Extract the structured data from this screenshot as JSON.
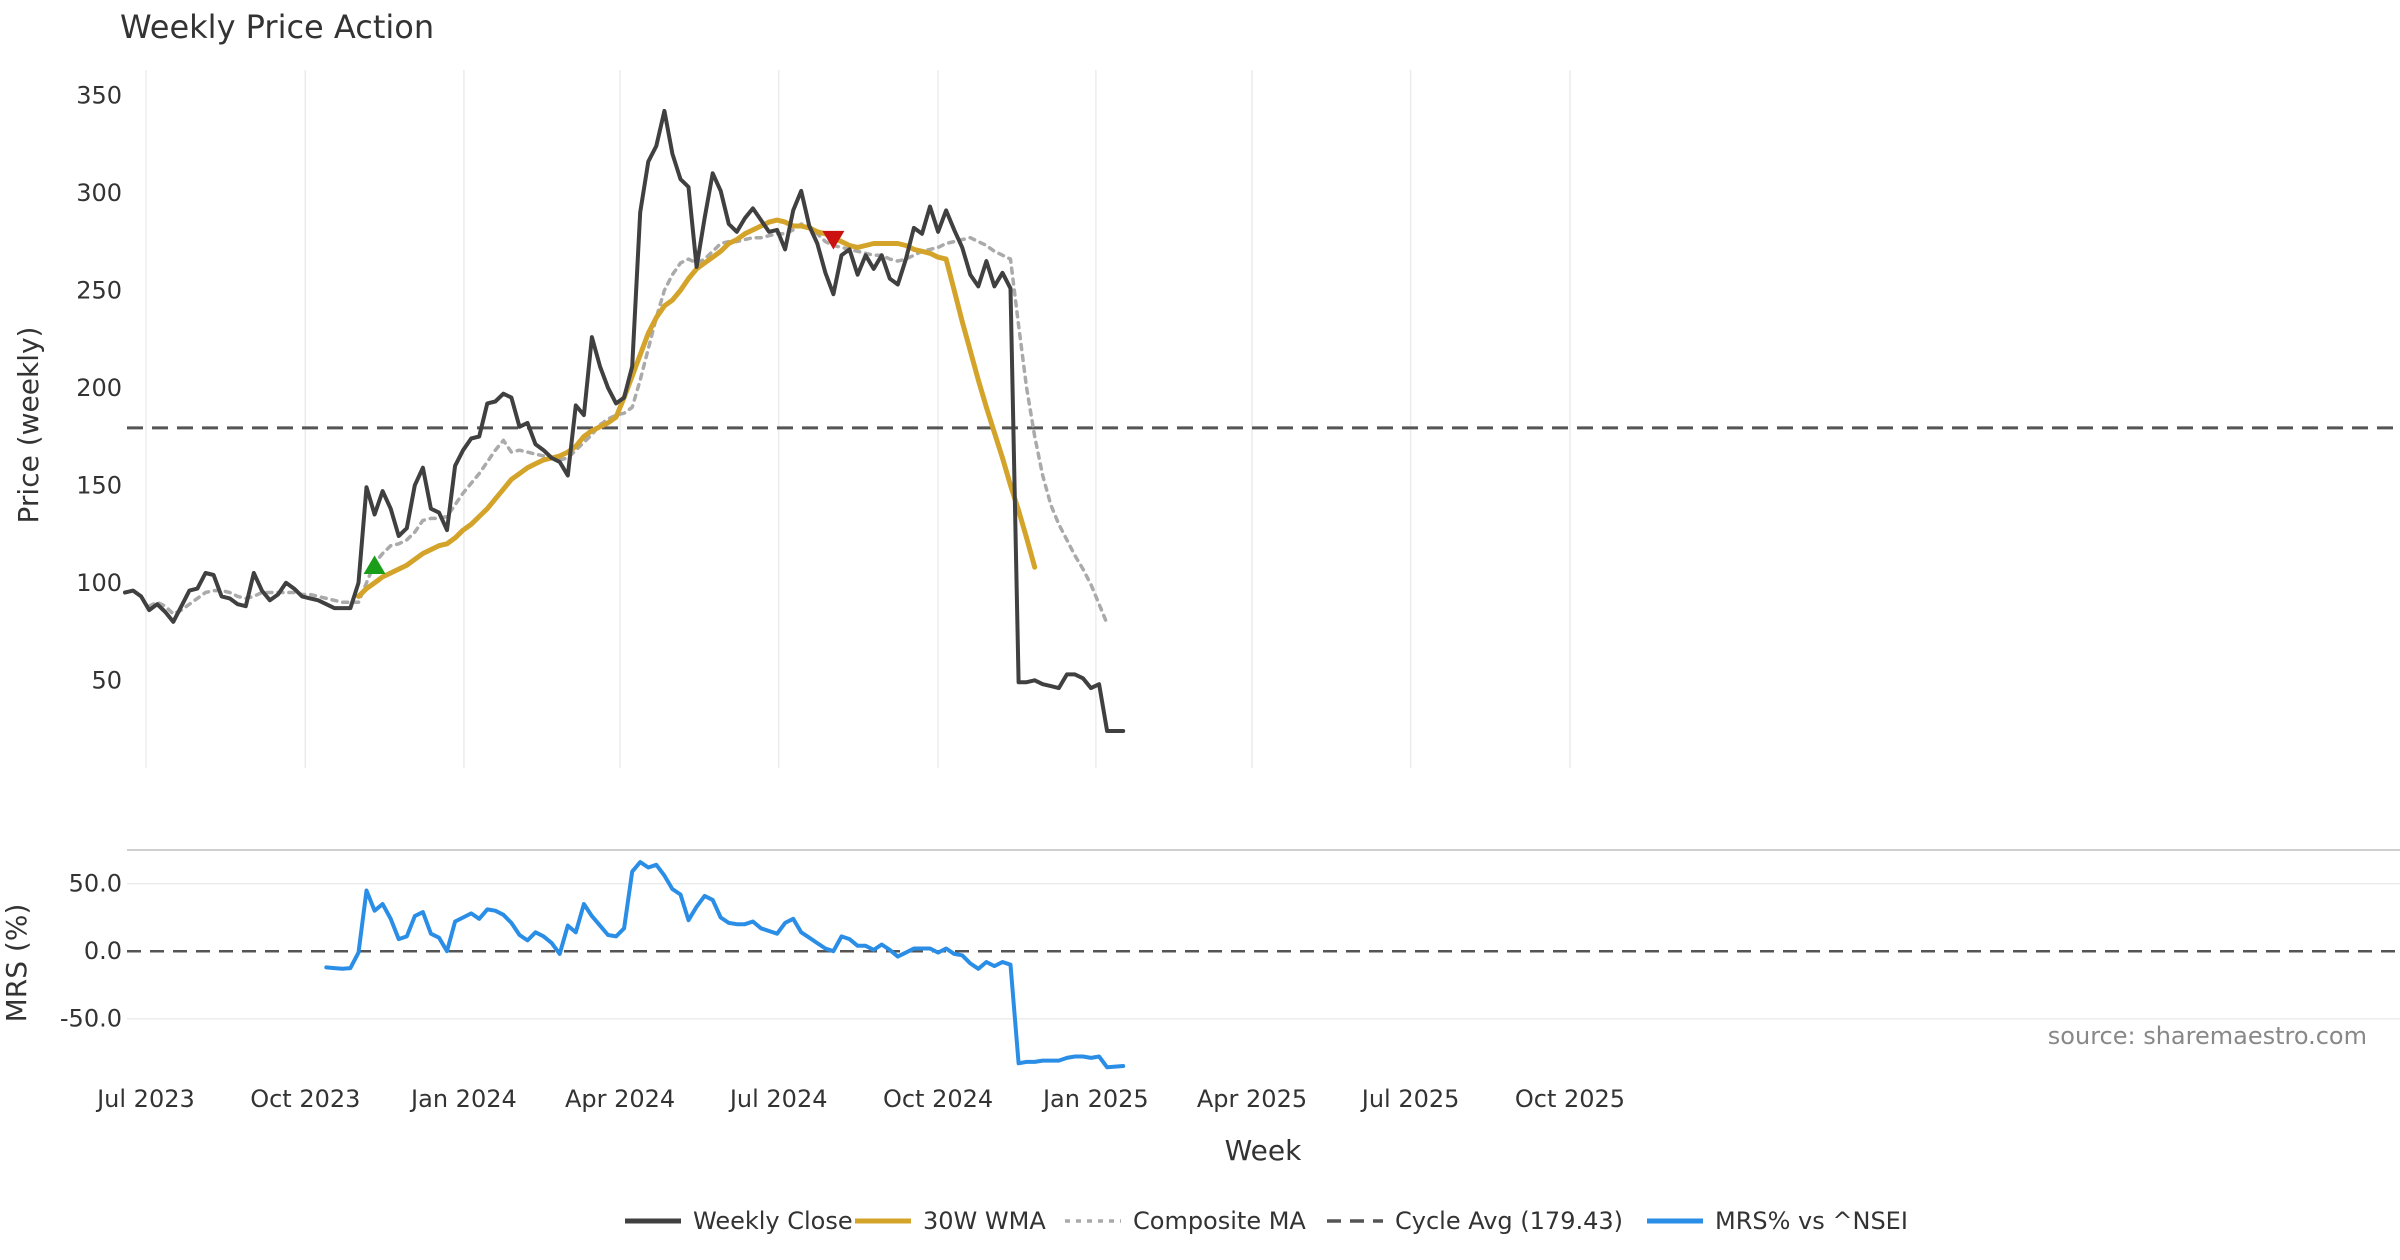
{
  "chart_data": [
    {
      "type": "line",
      "title": "Weekly Price Action",
      "ylabel": "Price (weekly)",
      "ylim": [
        5,
        363
      ],
      "yticks": [
        50,
        100,
        150,
        200,
        250,
        300,
        350
      ],
      "xlabel": "Week",
      "x_ticks": [
        "Jul 2023",
        "Oct 2023",
        "Jan 2024",
        "Apr 2024",
        "Jul 2024",
        "Oct 2024",
        "Jan 2025",
        "Apr 2025",
        "Jul 2025",
        "Oct 2025"
      ],
      "reference_line": {
        "name": "Cycle Avg (179.43)",
        "value": 179.43
      },
      "series": [
        {
          "name": "Weekly Close",
          "color": "#404040",
          "start_index": 0,
          "values": [
            95,
            96,
            93,
            86,
            89,
            85,
            80,
            88,
            96,
            97,
            105,
            104,
            93,
            92,
            89,
            88,
            105,
            96,
            91,
            94,
            100,
            97,
            93,
            92,
            91,
            89,
            87,
            87,
            87,
            100,
            149,
            135,
            147,
            138,
            124,
            128,
            150,
            159,
            138,
            136,
            127,
            160,
            168,
            174,
            175,
            192,
            193,
            197,
            195,
            180,
            182,
            171,
            168,
            164,
            162,
            155,
            191,
            186,
            226,
            211,
            200,
            192,
            195,
            211,
            290,
            316,
            324,
            342,
            320,
            307,
            303,
            262,
            287,
            310,
            301,
            284,
            280,
            287,
            292,
            286,
            280,
            281,
            271,
            291,
            301,
            283,
            274,
            259,
            248,
            268,
            271,
            258,
            268,
            261,
            268,
            256,
            253,
            266,
            282,
            279,
            293,
            280,
            291,
            281,
            272,
            258,
            252,
            265,
            252,
            259,
            251,
            49,
            49,
            50,
            48,
            47,
            46,
            53,
            53,
            51,
            46,
            48,
            24,
            24,
            24
          ]
        },
        {
          "name": "30W WMA",
          "color": "#d4a42a",
          "start_index": 29,
          "values": [
            93,
            97,
            100,
            103,
            105,
            107,
            109,
            112,
            115,
            117,
            119,
            120,
            123,
            127,
            130,
            134,
            138,
            143,
            148,
            153,
            156,
            159,
            161,
            163,
            164,
            165,
            167,
            170,
            175,
            178,
            180,
            182,
            185,
            195,
            206,
            217,
            228,
            236,
            242,
            245,
            250,
            256,
            261,
            264,
            267,
            270,
            274,
            276,
            279,
            281,
            283,
            285,
            286,
            285,
            283,
            283,
            282,
            280,
            279,
            277,
            275,
            273,
            272,
            273,
            274,
            274,
            274,
            274,
            273,
            271,
            270,
            269,
            267,
            266,
            250,
            234,
            219,
            204,
            190,
            177,
            164,
            150,
            137,
            123,
            108
          ]
        },
        {
          "name": "Composite MA",
          "color": "#aaaaaa",
          "start_index": 0,
          "values": [
            null,
            null,
            null,
            88,
            90,
            88,
            84,
            86,
            89,
            92,
            95,
            96,
            96,
            95,
            93,
            92,
            93,
            95,
            95,
            95,
            95,
            95,
            94,
            94,
            93,
            92,
            91,
            90,
            90,
            90,
            100,
            110,
            115,
            119,
            120,
            122,
            126,
            132,
            133,
            133,
            134,
            140,
            146,
            151,
            156,
            162,
            168,
            173,
            167,
            168,
            167,
            166,
            165,
            164,
            163,
            164,
            168,
            172,
            176,
            181,
            184,
            186,
            187,
            190,
            204,
            220,
            236,
            250,
            258,
            264,
            266,
            264,
            266,
            270,
            274,
            275,
            275,
            276,
            277,
            277,
            278,
            279,
            279,
            281,
            284,
            283,
            279,
            275,
            273,
            272,
            271,
            270,
            269,
            268,
            268,
            266,
            265,
            266,
            268,
            270,
            271,
            272,
            274,
            275,
            276,
            277,
            275,
            273,
            270,
            268,
            266,
            232,
            200,
            175,
            155,
            140,
            130,
            122,
            114,
            107,
            99,
            89,
            79
          ]
        }
      ],
      "markers": [
        {
          "type": "buy",
          "symbol": "▲",
          "color": "#1a9e1a",
          "index": 31,
          "value": 109
        },
        {
          "type": "sell",
          "symbol": "▼",
          "color": "#cc1111",
          "index": 88,
          "value": 276
        }
      ]
    },
    {
      "type": "line",
      "ylabel": "MRS (%)",
      "ylim": [
        -88,
        75
      ],
      "yticks": [
        50.0,
        0.0,
        -50.0
      ],
      "tick_labels": [
        "50.0",
        "0.0",
        "-50.0"
      ],
      "series": [
        {
          "name": "MRS% vs ^NSEI",
          "color": "#2b8ee6",
          "start_index": 25,
          "values": [
            -12,
            -12.5,
            -13,
            -12.5,
            -1,
            45,
            30,
            35,
            24,
            9,
            11,
            26,
            29,
            13,
            10,
            0,
            22,
            25,
            28,
            24,
            31,
            30,
            27,
            21,
            12,
            8,
            14,
            11,
            6,
            -2,
            19,
            14,
            35,
            26,
            19,
            12,
            11,
            17,
            59,
            66,
            62,
            64,
            56,
            46,
            42,
            23,
            33,
            41,
            38,
            25,
            21,
            20,
            20,
            22,
            17,
            15,
            13,
            21,
            24,
            14,
            10,
            6,
            2,
            0,
            11,
            9,
            4,
            4,
            1,
            5,
            1,
            -4,
            -1,
            2,
            2,
            2,
            -1,
            2,
            -2,
            -3,
            -9,
            -13,
            -8,
            -11,
            -8,
            -10,
            -83,
            -82,
            -82,
            -81,
            -81,
            -81,
            -79,
            -78,
            -78,
            -79,
            -78,
            -86,
            -85.5,
            -85
          ]
        }
      ]
    }
  ],
  "ui": {
    "title": "Weekly Price Action",
    "price_ylabel": "Price (weekly)",
    "mrs_ylabel": "MRS (%)",
    "xlabel": "Week",
    "source_note": "source: sharemaestro.com",
    "legend": [
      {
        "label": "Weekly Close",
        "color": "#404040",
        "style": "solid"
      },
      {
        "label": "30W WMA",
        "color": "#d4a42a",
        "style": "solid"
      },
      {
        "label": "Composite MA",
        "color": "#aaaaaa",
        "style": "dotted"
      },
      {
        "label": "Cycle Avg (179.43)",
        "color": "#555555",
        "style": "dashed"
      },
      {
        "label": "MRS% vs ^NSEI",
        "color": "#2b8ee6",
        "style": "solid"
      }
    ]
  }
}
